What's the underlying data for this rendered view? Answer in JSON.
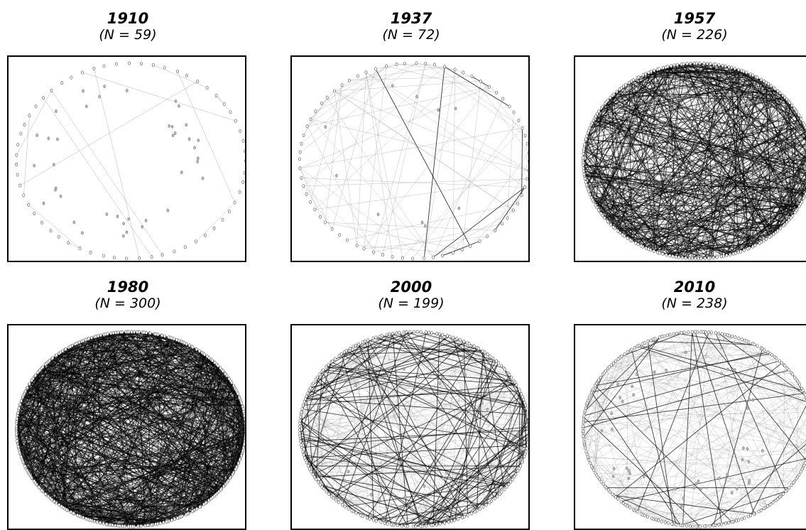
{
  "panels": [
    {
      "year": "1910",
      "count": "(N = 59)",
      "n": 59,
      "density": "sparse"
    },
    {
      "year": "1937",
      "count": "(N = 72)",
      "n": 72,
      "density": "light"
    },
    {
      "year": "1957",
      "count": "(N = 226)",
      "n": 226,
      "density": "dense"
    },
    {
      "year": "1980",
      "count": "(N = 300)",
      "n": 300,
      "density": "very dense"
    },
    {
      "year": "2000",
      "count": "(N = 199)",
      "n": 199,
      "density": "medium"
    },
    {
      "year": "2010",
      "count": "(N = 238)",
      "n": 238,
      "density": "light"
    }
  ]
}
